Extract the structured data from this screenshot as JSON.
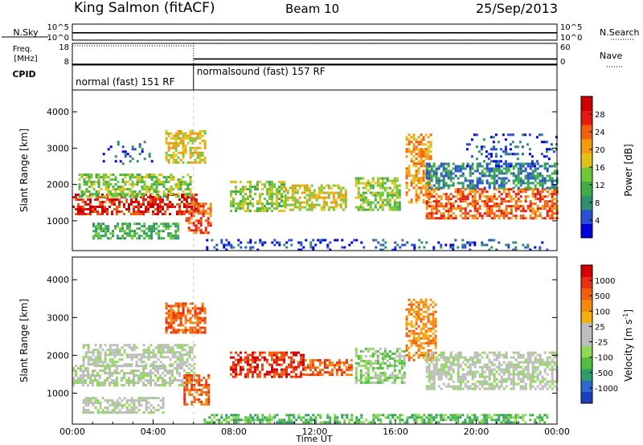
{
  "header": {
    "station": "King Salmon (fitACF)",
    "beam": "Beam 10",
    "date": "25/Sep/2013"
  },
  "chart_data": [
    {
      "type": "line",
      "panel": "noise",
      "left_label": "N.Sky",
      "right_label": "N.Search",
      "left_ticks": [
        "10^5",
        "10^0"
      ],
      "right_ticks": [
        "10^5",
        "10^0"
      ],
      "series": [
        {
          "name": "N.Sky",
          "style": "solid",
          "x": [
            0,
            6,
            12,
            18,
            24
          ],
          "y": [
            2.3,
            2.3,
            2.3,
            2.3,
            2.3
          ]
        },
        {
          "name": "N.Search",
          "style": "dotted",
          "x": [
            0,
            24
          ],
          "y": [
            0.05,
            0.05
          ]
        }
      ]
    },
    {
      "type": "line",
      "panel": "frequency",
      "left_label": "Freq.",
      "left_unit": "[MHz]",
      "left_ticks": [
        "18",
        "8"
      ],
      "left_ylim": [
        8,
        18
      ],
      "right_label": "Nave",
      "right_ticks": [
        "60",
        "0"
      ],
      "right_ylim": [
        0,
        60
      ],
      "cpid_label": "CPID",
      "series": [
        {
          "name": "Freq.",
          "style": "dotted",
          "x": [
            0,
            6.0
          ],
          "y": [
            18,
            18
          ]
        },
        {
          "name": "Freq.",
          "style": "solid",
          "x": [
            6.0,
            24
          ],
          "y": [
            10.2,
            10.2
          ]
        },
        {
          "name": "Nave",
          "style": "solid",
          "x": [
            0,
            24
          ],
          "y": [
            0,
            0
          ]
        }
      ],
      "cpid_segments": [
        {
          "label": "normal (fast) 151 RF",
          "start": 0,
          "end": 6.0
        },
        {
          "label": "normalsound (fast) 157 RF",
          "start": 6.0,
          "end": 24
        }
      ]
    },
    {
      "type": "heatmap",
      "panel": "power",
      "ylabel": "Slant Range [km]",
      "yticks": [
        1000,
        2000,
        3000,
        4000
      ],
      "ylim": [
        180,
        4600
      ],
      "xlim": [
        0,
        24
      ],
      "colorbar": {
        "label": "Power [dB]",
        "ticks": [
          "28",
          "24",
          "20",
          "16",
          "12",
          "8",
          "4"
        ],
        "colors": [
          "#0000dd",
          "#2a4fd0",
          "#2f8f6e",
          "#3fae4a",
          "#6fc83a",
          "#e0c21a",
          "#f39a10",
          "#f06010",
          "#e51a10",
          "#cc0000"
        ]
      },
      "regions": [
        {
          "x": [
            0.0,
            6.2
          ],
          "r": [
            1200,
            1750
          ],
          "level": 8
        },
        {
          "x": [
            0.3,
            5.8
          ],
          "r": [
            1700,
            2300
          ],
          "level": 4
        },
        {
          "x": [
            1.0,
            5.2
          ],
          "r": [
            500,
            950
          ],
          "level": 3
        },
        {
          "x": [
            4.6,
            6.6
          ],
          "r": [
            2600,
            3500
          ],
          "level": 5
        },
        {
          "x": [
            5.6,
            6.8
          ],
          "r": [
            700,
            1500
          ],
          "level": 7
        },
        {
          "x": [
            7.8,
            10.5
          ],
          "r": [
            1300,
            2100
          ],
          "level": 4
        },
        {
          "x": [
            10.5,
            13.5
          ],
          "r": [
            1300,
            2000
          ],
          "level": 5
        },
        {
          "x": [
            14.0,
            16.2
          ],
          "r": [
            1300,
            2200
          ],
          "level": 4
        },
        {
          "x": [
            16.5,
            17.8
          ],
          "r": [
            1500,
            3400
          ],
          "level": 6
        },
        {
          "x": [
            17.5,
            24.0
          ],
          "r": [
            1100,
            1900
          ],
          "level": 7
        },
        {
          "x": [
            17.5,
            24.0
          ],
          "r": [
            1900,
            2600
          ],
          "level": 2
        },
        {
          "x": [
            6.5,
            23.5
          ],
          "r": [
            200,
            500
          ],
          "level": 1
        },
        {
          "x": [
            1.5,
            4.0
          ],
          "r": [
            2600,
            3200
          ],
          "level": 1
        },
        {
          "x": [
            19.5,
            24.0
          ],
          "r": [
            2500,
            3400
          ],
          "level": 1
        }
      ]
    },
    {
      "type": "heatmap",
      "panel": "velocity",
      "ylabel": "Slant Range [km]",
      "yticks": [
        1000,
        2000,
        3000,
        4000
      ],
      "ylim": [
        180,
        4600
      ],
      "xlabel": "Time UT",
      "xticks": [
        "00:00",
        "04:00",
        "08:00",
        "12:00",
        "16:00",
        "20:00",
        "00:00"
      ],
      "xlim": [
        0,
        24
      ],
      "colorbar": {
        "label": "Velocity [m s^-1]",
        "ticks": [
          "1000",
          "500",
          "100",
          "25",
          "-25",
          "-100",
          "-500",
          "-1000"
        ],
        "colors": [
          "#1a3fbf",
          "#2c6ad1",
          "#2f9e6a",
          "#4fbf3c",
          "#8fd85a",
          "#bdbdbd",
          "#bdbdbd",
          "#f3b010",
          "#f58a10",
          "#f06010",
          "#e83010",
          "#d50000"
        ]
      },
      "regions": [
        {
          "x": [
            0.0,
            6.0
          ],
          "r": [
            1200,
            1750
          ],
          "level": 5
        },
        {
          "x": [
            0.5,
            6.0
          ],
          "r": [
            1750,
            2300
          ],
          "level": 5
        },
        {
          "x": [
            5.5,
            6.8
          ],
          "r": [
            700,
            1500
          ],
          "level": 9
        },
        {
          "x": [
            4.6,
            6.6
          ],
          "r": [
            2600,
            3400
          ],
          "level": 9
        },
        {
          "x": [
            7.8,
            11.5
          ],
          "r": [
            1400,
            2100
          ],
          "level": 10
        },
        {
          "x": [
            11.5,
            13.8
          ],
          "r": [
            1500,
            1900
          ],
          "level": 9
        },
        {
          "x": [
            14.0,
            16.5
          ],
          "r": [
            1300,
            2200
          ],
          "level": 4
        },
        {
          "x": [
            16.5,
            18.0
          ],
          "r": [
            1900,
            3500
          ],
          "level": 8
        },
        {
          "x": [
            17.5,
            24.0
          ],
          "r": [
            1100,
            2100
          ],
          "level": 5
        },
        {
          "x": [
            6.5,
            23.5
          ],
          "r": [
            200,
            450
          ],
          "level": 3
        },
        {
          "x": [
            0.5,
            4.5
          ],
          "r": [
            500,
            900
          ],
          "level": 5
        }
      ]
    }
  ]
}
